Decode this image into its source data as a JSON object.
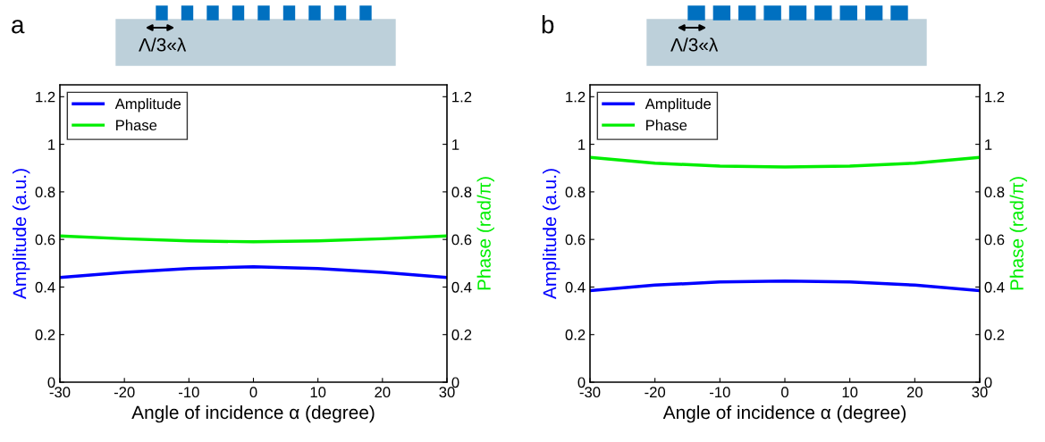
{
  "chart_data": [
    {
      "type": "line",
      "title": "a",
      "annotations": [
        "Λ/3«λ"
      ],
      "xlabel": "Angle of incidence α (degree)",
      "ylabel": "Amplitude (a.u.)",
      "y2label": "Phase (rad/π)",
      "x": [
        -30,
        -20,
        -10,
        0,
        10,
        20,
        30
      ],
      "series": [
        {
          "name": "Amplitude",
          "color": "#0000ff",
          "values": [
            0.44,
            0.462,
            0.478,
            0.485,
            0.478,
            0.462,
            0.44
          ]
        },
        {
          "name": "Phase",
          "color": "#00ee00",
          "axis": "y2",
          "values": [
            0.615,
            0.603,
            0.594,
            0.59,
            0.594,
            0.603,
            0.615
          ]
        }
      ],
      "xlim": [
        -30,
        30
      ],
      "xticks": [
        -30,
        -20,
        -10,
        0,
        10,
        20,
        30
      ],
      "ylim": [
        0,
        1.25
      ],
      "yticks": [
        0,
        0.2,
        0.4,
        0.6,
        0.8,
        1,
        1.2
      ],
      "y2lim": [
        0,
        1.25
      ],
      "y2ticks": [
        0,
        0.2,
        0.4,
        0.6,
        0.8,
        1,
        1.2
      ],
      "legend": "top left",
      "grid": false
    },
    {
      "type": "line",
      "title": "b",
      "annotations": [
        "Λ/3«λ"
      ],
      "xlabel": "Angle of incidence α (degree)",
      "ylabel": "Amplitude (a.u.)",
      "y2label": "Phase (rad/π)",
      "x": [
        -30,
        -20,
        -10,
        0,
        10,
        20,
        30
      ],
      "series": [
        {
          "name": "Amplitude",
          "color": "#0000ff",
          "values": [
            0.385,
            0.408,
            0.421,
            0.425,
            0.421,
            0.408,
            0.385
          ]
        },
        {
          "name": "Phase",
          "color": "#00ee00",
          "axis": "y2",
          "values": [
            0.945,
            0.921,
            0.908,
            0.905,
            0.908,
            0.921,
            0.945
          ]
        }
      ],
      "xlim": [
        -30,
        30
      ],
      "xticks": [
        -30,
        -20,
        -10,
        0,
        10,
        20,
        30
      ],
      "ylim": [
        0,
        1.25
      ],
      "yticks": [
        0,
        0.2,
        0.4,
        0.6,
        0.8,
        1,
        1.2
      ],
      "y2lim": [
        0,
        1.25
      ],
      "y2ticks": [
        0,
        0.2,
        0.4,
        0.6,
        0.8,
        1,
        1.2
      ],
      "legend": "top left",
      "grid": false
    }
  ]
}
